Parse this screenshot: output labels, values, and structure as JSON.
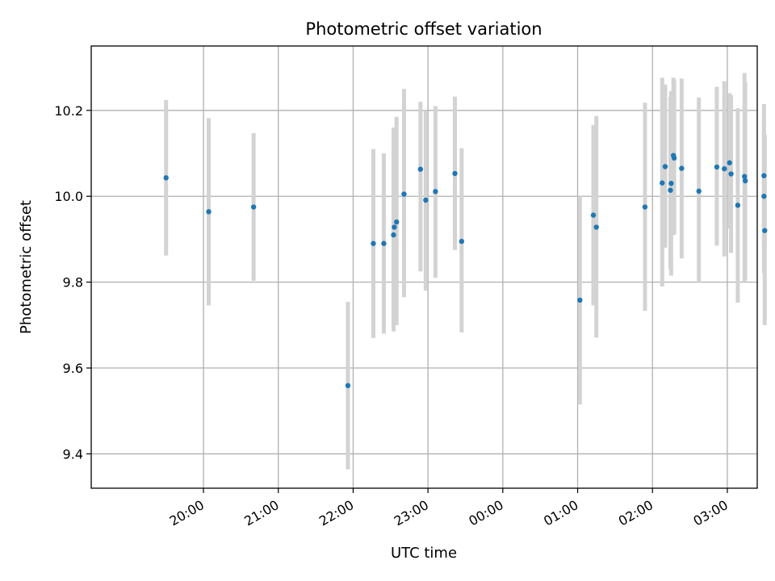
{
  "chart_data": {
    "type": "scatter",
    "title": "Photometric offset variation",
    "xlabel": "UTC time",
    "ylabel": "Photometric offset",
    "x_unit": "hours since 2020-01-01 00:00 UTC",
    "xlim": [
      18.5,
      27.4
    ],
    "ylim": [
      9.32,
      10.35
    ],
    "grid": true,
    "x_ticks": [
      {
        "value": 20,
        "label": "20:00"
      },
      {
        "value": 21,
        "label": "21:00"
      },
      {
        "value": 22,
        "label": "22:00"
      },
      {
        "value": 23,
        "label": "23:00"
      },
      {
        "value": 24,
        "label": "00:00"
      },
      {
        "value": 25,
        "label": "01:00"
      },
      {
        "value": 26,
        "label": "02:00"
      },
      {
        "value": 27,
        "label": "03:00"
      }
    ],
    "y_ticks": [
      {
        "value": 9.4,
        "label": "9.4"
      },
      {
        "value": 9.6,
        "label": "9.6"
      },
      {
        "value": 9.8,
        "label": "9.8"
      },
      {
        "value": 10.0,
        "label": "10.0"
      },
      {
        "value": 10.2,
        "label": "10.2"
      }
    ],
    "colors": {
      "point": "#1f77b4",
      "errorbar": "#d3d3d3",
      "grid": "#b0b0b0"
    },
    "points": [
      {
        "x": 19.5,
        "y": 10.043,
        "lo": 9.862,
        "hi": 10.224
      },
      {
        "x": 20.07,
        "y": 9.964,
        "lo": 9.746,
        "hi": 10.182
      },
      {
        "x": 20.67,
        "y": 9.975,
        "lo": 9.803,
        "hi": 10.147
      },
      {
        "x": 21.93,
        "y": 9.559,
        "lo": 9.364,
        "hi": 9.754
      },
      {
        "x": 22.27,
        "y": 9.89,
        "lo": 9.67,
        "hi": 10.11
      },
      {
        "x": 22.41,
        "y": 9.89,
        "lo": 9.68,
        "hi": 10.1
      },
      {
        "x": 22.54,
        "y": 9.91,
        "lo": 9.685,
        "hi": 10.16
      },
      {
        "x": 22.55,
        "y": 9.928,
        "lo": 9.72,
        "hi": 10.14
      },
      {
        "x": 22.58,
        "y": 9.94,
        "lo": 9.7,
        "hi": 10.185
      },
      {
        "x": 22.68,
        "y": 10.005,
        "lo": 9.765,
        "hi": 10.25
      },
      {
        "x": 22.9,
        "y": 10.063,
        "lo": 9.825,
        "hi": 10.22
      },
      {
        "x": 22.97,
        "y": 9.991,
        "lo": 9.78,
        "hi": 10.2
      },
      {
        "x": 23.1,
        "y": 10.011,
        "lo": 9.81,
        "hi": 10.21
      },
      {
        "x": 23.36,
        "y": 10.053,
        "lo": 9.875,
        "hi": 10.232
      },
      {
        "x": 23.45,
        "y": 9.895,
        "lo": 9.683,
        "hi": 10.112
      },
      {
        "x": 25.03,
        "y": 9.758,
        "lo": 9.515,
        "hi": 10.0
      },
      {
        "x": 25.21,
        "y": 9.956,
        "lo": 9.746,
        "hi": 10.166
      },
      {
        "x": 25.25,
        "y": 9.928,
        "lo": 9.671,
        "hi": 10.187
      },
      {
        "x": 25.9,
        "y": 9.975,
        "lo": 9.733,
        "hi": 10.218
      },
      {
        "x": 26.13,
        "y": 10.031,
        "lo": 9.79,
        "hi": 10.276
      },
      {
        "x": 26.17,
        "y": 10.069,
        "lo": 9.88,
        "hi": 10.26
      },
      {
        "x": 26.24,
        "y": 10.014,
        "lo": 9.83,
        "hi": 10.232
      },
      {
        "x": 26.25,
        "y": 10.03,
        "lo": 9.815,
        "hi": 10.245
      },
      {
        "x": 26.28,
        "y": 10.095,
        "lo": 9.91,
        "hi": 10.276
      },
      {
        "x": 26.29,
        "y": 10.089,
        "lo": 9.91,
        "hi": 10.27
      },
      {
        "x": 26.39,
        "y": 10.065,
        "lo": 9.855,
        "hi": 10.274
      },
      {
        "x": 26.62,
        "y": 10.012,
        "lo": 9.8,
        "hi": 10.23
      },
      {
        "x": 26.86,
        "y": 10.068,
        "lo": 9.885,
        "hi": 10.255
      },
      {
        "x": 26.96,
        "y": 10.064,
        "lo": 9.86,
        "hi": 10.268
      },
      {
        "x": 27.03,
        "y": 10.078,
        "lo": 9.925,
        "hi": 10.24
      },
      {
        "x": 27.05,
        "y": 10.052,
        "lo": 9.868,
        "hi": 10.236
      },
      {
        "x": 27.14,
        "y": 9.979,
        "lo": 9.752,
        "hi": 10.205
      },
      {
        "x": 27.23,
        "y": 10.046,
        "lo": 9.8,
        "hi": 10.287
      },
      {
        "x": 27.24,
        "y": 10.036,
        "lo": 9.805,
        "hi": 10.266
      },
      {
        "x": 27.49,
        "y": 10.048,
        "lo": 9.88,
        "hi": 10.215
      },
      {
        "x": 27.49,
        "y": 10.0,
        "lo": 9.82,
        "hi": 10.18
      },
      {
        "x": 27.5,
        "y": 9.92,
        "lo": 9.7,
        "hi": 10.144
      }
    ]
  }
}
